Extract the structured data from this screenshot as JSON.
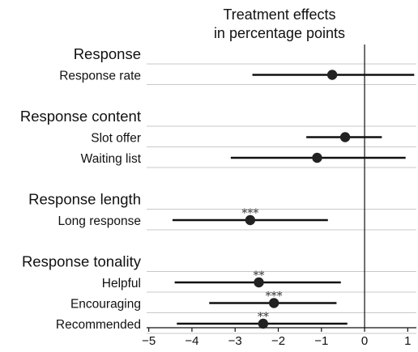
{
  "chart_data": {
    "type": "forest",
    "title_lines": [
      "Treatment effects",
      "in percentage points"
    ],
    "xlim": [
      -5.05,
      1.2
    ],
    "xticks": [
      -5,
      -4,
      -3,
      -2,
      -1,
      0,
      1
    ],
    "xtick_labels": [
      "−5",
      "−4",
      "−3",
      "−2",
      "−1",
      "0",
      "1"
    ],
    "reference_line": 0,
    "groups": [
      {
        "label": "Response",
        "rows": [
          {
            "label": "Response rate",
            "estimate": -0.75,
            "ci": [
              -2.6,
              1.15
            ],
            "stars": ""
          }
        ]
      },
      {
        "label": "Response content",
        "rows": [
          {
            "label": "Slot offer",
            "estimate": -0.45,
            "ci": [
              -1.35,
              0.4
            ],
            "stars": ""
          },
          {
            "label": "Waiting list",
            "estimate": -1.1,
            "ci": [
              -3.1,
              0.95
            ],
            "stars": ""
          }
        ]
      },
      {
        "label": "Response length",
        "rows": [
          {
            "label": "Long response",
            "estimate": -2.65,
            "ci": [
              -4.45,
              -0.85
            ],
            "stars": "***"
          }
        ]
      },
      {
        "label": "Response tonality",
        "rows": [
          {
            "label": "Helpful",
            "estimate": -2.45,
            "ci": [
              -4.4,
              -0.55
            ],
            "stars": "**"
          },
          {
            "label": "Encouraging",
            "estimate": -2.1,
            "ci": [
              -3.6,
              -0.65
            ],
            "stars": "***"
          },
          {
            "label": "Recommended",
            "estimate": -2.35,
            "ci": [
              -4.35,
              -0.4
            ],
            "stars": "**"
          }
        ]
      }
    ]
  }
}
